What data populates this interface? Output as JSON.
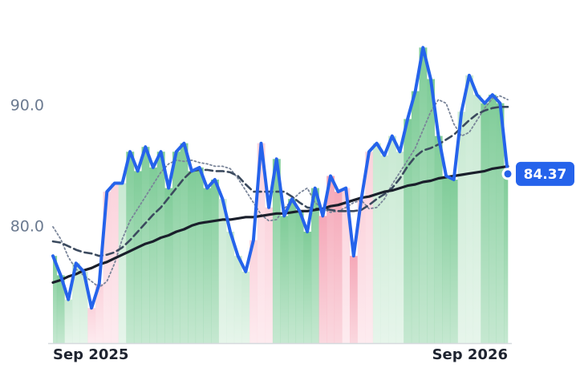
{
  "chart_data": {
    "type": "line",
    "categories": [
      "Sep 2025",
      null,
      null,
      null,
      null,
      null,
      null,
      null,
      null,
      null,
      null,
      null,
      null,
      null,
      null,
      null,
      null,
      null,
      null,
      null,
      null,
      null,
      null,
      null,
      null,
      null,
      null,
      null,
      null,
      null,
      null,
      null,
      null,
      null,
      null,
      null,
      null,
      null,
      null,
      null,
      null,
      null,
      null,
      null,
      null,
      null,
      null,
      null,
      null,
      null,
      null,
      null,
      null,
      null,
      null,
      null,
      null,
      null,
      null,
      "Sep 2026"
    ],
    "bar_colors": [
      "#7fcc98",
      "#7fcc98",
      "#c8e9d2",
      "#c8e9d2",
      "#c8e9d2",
      "#fbd3dc",
      "#fbd3dc",
      "#fbd3dc",
      "#fbd3dc",
      "#c8e9d2",
      "#7fcc98",
      "#7fcc98",
      "#7fcc98",
      "#7fcc98",
      "#7fcc98",
      "#7fcc98",
      "#7fcc98",
      "#7fcc98",
      "#7fcc98",
      "#7fcc98",
      "#7fcc98",
      "#7fcc98",
      "#c8e9d2",
      "#c8e9d2",
      "#c8e9d2",
      "#c8e9d2",
      "#fbd3dc",
      "#fbd3dc",
      "#fbd3dc",
      "#7fcc98",
      "#7fcc98",
      "#7fcc98",
      "#7fcc98",
      "#7fcc98",
      "#7fcc98",
      "#f5a8b8",
      "#f5a8b8",
      "#f5a8b8",
      "#fbd3dc",
      "#f5a8b8",
      "#fbd3dc",
      "#fbd3dc",
      "#c8e9d2",
      "#c8e9d2",
      "#c8e9d2",
      "#c8e9d2",
      "#7fcc98",
      "#7fcc98",
      "#7fcc98",
      "#7fcc98",
      "#7fcc98",
      "#7fcc98",
      "#7fcc98",
      "#c8e9d2",
      "#c8e9d2",
      "#c8e9d2",
      "#7fcc98",
      "#7fcc98",
      "#7fcc98",
      "#7fcc98"
    ],
    "series": [
      {
        "color": "#7a8599",
        "style": "dotted",
        "values": [
          80.0,
          79.0,
          77.5,
          76.5,
          76.0,
          75.5,
          75.0,
          75.5,
          77.0,
          79.0,
          80.5,
          81.5,
          82.5,
          83.5,
          84.5,
          85.2,
          85.5,
          85.4,
          85.5,
          85.3,
          85.2,
          85.0,
          85.0,
          84.8,
          84.0,
          83.0,
          82.0,
          81.0,
          80.5,
          80.6,
          81.5,
          82.2,
          82.8,
          83.2,
          82.0,
          81.5,
          81.2,
          81.3,
          81.6,
          82.0,
          82.2,
          81.5,
          81.6,
          82.3,
          83.5,
          84.5,
          85.5,
          86.5,
          88.0,
          89.5,
          90.5,
          90.2,
          88.5,
          87.5,
          87.8,
          88.8,
          89.8,
          90.6,
          90.8,
          90.5
        ]
      },
      {
        "color": "#3b4a5e",
        "style": "dashed",
        "values": [
          78.8,
          78.7,
          78.4,
          78.1,
          77.9,
          77.8,
          77.6,
          77.7,
          77.9,
          78.3,
          78.9,
          79.6,
          80.3,
          81.0,
          81.6,
          82.4,
          83.2,
          84.0,
          84.6,
          84.7,
          84.7,
          84.6,
          84.6,
          84.5,
          84.2,
          83.5,
          82.9,
          82.9,
          82.9,
          82.9,
          82.9,
          82.5,
          82.0,
          81.6,
          81.5,
          81.5,
          81.4,
          81.3,
          81.3,
          81.3,
          81.4,
          81.8,
          82.3,
          82.7,
          83.2,
          84.0,
          85.0,
          85.8,
          86.3,
          86.5,
          86.8,
          87.2,
          87.6,
          88.2,
          88.8,
          89.3,
          89.6,
          89.8,
          89.9,
          89.9
        ]
      },
      {
        "color": "#1a1f2b",
        "style": "solid",
        "values": [
          75.4,
          75.6,
          75.9,
          76.1,
          76.4,
          76.6,
          76.9,
          77.1,
          77.4,
          77.7,
          78.0,
          78.3,
          78.6,
          78.8,
          79.1,
          79.3,
          79.6,
          79.8,
          80.1,
          80.3,
          80.4,
          80.5,
          80.6,
          80.6,
          80.7,
          80.8,
          80.8,
          80.9,
          81.0,
          81.1,
          81.1,
          81.2,
          81.3,
          81.3,
          81.4,
          81.5,
          81.7,
          81.8,
          82.0,
          82.2,
          82.4,
          82.5,
          82.7,
          82.9,
          83.0,
          83.2,
          83.4,
          83.5,
          83.7,
          83.8,
          84.0,
          84.1,
          84.2,
          84.3,
          84.4,
          84.5,
          84.6,
          84.8,
          84.9,
          85.0
        ]
      },
      {
        "color": "#2563eb",
        "style": "bold",
        "values": [
          77.6,
          76.0,
          74.0,
          77.0,
          76.3,
          73.3,
          75.3,
          82.9,
          83.6,
          83.6,
          86.2,
          84.6,
          86.6,
          84.9,
          86.2,
          83.2,
          86.2,
          86.9,
          84.6,
          84.9,
          83.2,
          83.9,
          82.3,
          79.6,
          77.6,
          76.3,
          78.9,
          86.9,
          81.6,
          85.6,
          80.9,
          82.3,
          81.3,
          79.6,
          83.2,
          80.9,
          84.2,
          82.9,
          83.2,
          77.6,
          82.3,
          86.2,
          86.9,
          85.9,
          87.5,
          86.2,
          88.9,
          91.2,
          94.8,
          92.2,
          87.5,
          84.2,
          83.9,
          89.5,
          92.5,
          90.9,
          90.2,
          90.9,
          90.2,
          84.37
        ]
      }
    ],
    "ylim": [
      70.4,
      97.4
    ],
    "yticks": [
      {
        "value": 80,
        "label": "80.0"
      },
      {
        "value": 90,
        "label": "90.0"
      }
    ]
  }
}
